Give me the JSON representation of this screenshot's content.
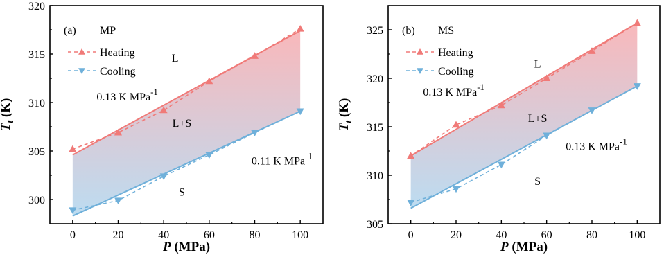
{
  "chart_data": [
    {
      "type": "line",
      "panel_label": "(a)",
      "material": "MP",
      "xlabel": "P (MPa)",
      "ylabel": "Tt (K)",
      "xlim": [
        -10,
        110
      ],
      "ylim": [
        297.5,
        320
      ],
      "x_ticks": [
        0,
        20,
        40,
        60,
        80,
        100
      ],
      "y_ticks": [
        300,
        305,
        310,
        315,
        320
      ],
      "legend_position": "top-left",
      "colors": {
        "heating": "#f07a78",
        "cooling": "#6fb0da",
        "fill_top": "#f9b8bb",
        "fill_bottom": "#bcdcf1"
      },
      "series": [
        {
          "name": "Heating",
          "marker": "triangle-up",
          "x": [
            0,
            20,
            40,
            60,
            80,
            100
          ],
          "y": [
            305.2,
            306.9,
            309.2,
            312.2,
            314.8,
            317.6
          ]
        },
        {
          "name": "Cooling",
          "marker": "triangle-down",
          "x": [
            0,
            20,
            40,
            60,
            80,
            100
          ],
          "y": [
            298.9,
            299.9,
            302.4,
            304.6,
            306.9,
            309.1
          ]
        }
      ],
      "fits": [
        {
          "x": [
            0,
            100
          ],
          "y": [
            304.6,
            317.4
          ]
        },
        {
          "x": [
            0,
            100
          ],
          "y": [
            298.3,
            309.1
          ]
        }
      ],
      "annotations": [
        {
          "text": "L",
          "x": 45,
          "y": 314.2
        },
        {
          "text": "L+S",
          "x": 48,
          "y": 307.5
        },
        {
          "text": "S",
          "x": 48,
          "y": 300.4
        },
        {
          "text": "0.13 K MPa",
          "sup": "-1",
          "x": 24,
          "y": 310.2
        },
        {
          "text": "0.11 K MPa",
          "sup": "-1",
          "x": 92,
          "y": 303.6
        }
      ]
    },
    {
      "type": "line",
      "panel_label": "(b)",
      "material": "MS",
      "xlabel": "P (MPa)",
      "ylabel": "Tt (K)",
      "xlim": [
        -10,
        110
      ],
      "ylim": [
        305,
        327.5
      ],
      "x_ticks": [
        0,
        20,
        40,
        60,
        80,
        100
      ],
      "y_ticks": [
        305,
        310,
        315,
        320,
        325
      ],
      "legend_position": "top-left",
      "colors": {
        "heating": "#f07a78",
        "cooling": "#6fb0da",
        "fill_top": "#f9b8bb",
        "fill_bottom": "#bcdcf1"
      },
      "series": [
        {
          "name": "Heating",
          "marker": "triangle-up",
          "x": [
            0,
            20,
            40,
            60,
            80,
            100
          ],
          "y": [
            312.0,
            315.2,
            317.2,
            320.0,
            322.8,
            325.7
          ]
        },
        {
          "name": "Cooling",
          "marker": "triangle-down",
          "x": [
            0,
            20,
            40,
            60,
            80,
            100
          ],
          "y": [
            307.2,
            308.6,
            311.1,
            314.1,
            316.7,
            319.2
          ]
        }
      ],
      "fits": [
        {
          "x": [
            0,
            100
          ],
          "y": [
            312.0,
            325.7
          ]
        },
        {
          "x": [
            0,
            100
          ],
          "y": [
            306.6,
            319.2
          ]
        }
      ],
      "annotations": [
        {
          "text": "L",
          "x": 56,
          "y": 321.1
        },
        {
          "text": "L+S",
          "x": 56,
          "y": 315.5
        },
        {
          "text": "S",
          "x": 56,
          "y": 309.0
        },
        {
          "text": "0.13 K MPa",
          "sup": "-1",
          "x": 19,
          "y": 318.2
        },
        {
          "text": "0.13 K MPa",
          "sup": "-1",
          "x": 82,
          "y": 312.6
        }
      ]
    }
  ]
}
